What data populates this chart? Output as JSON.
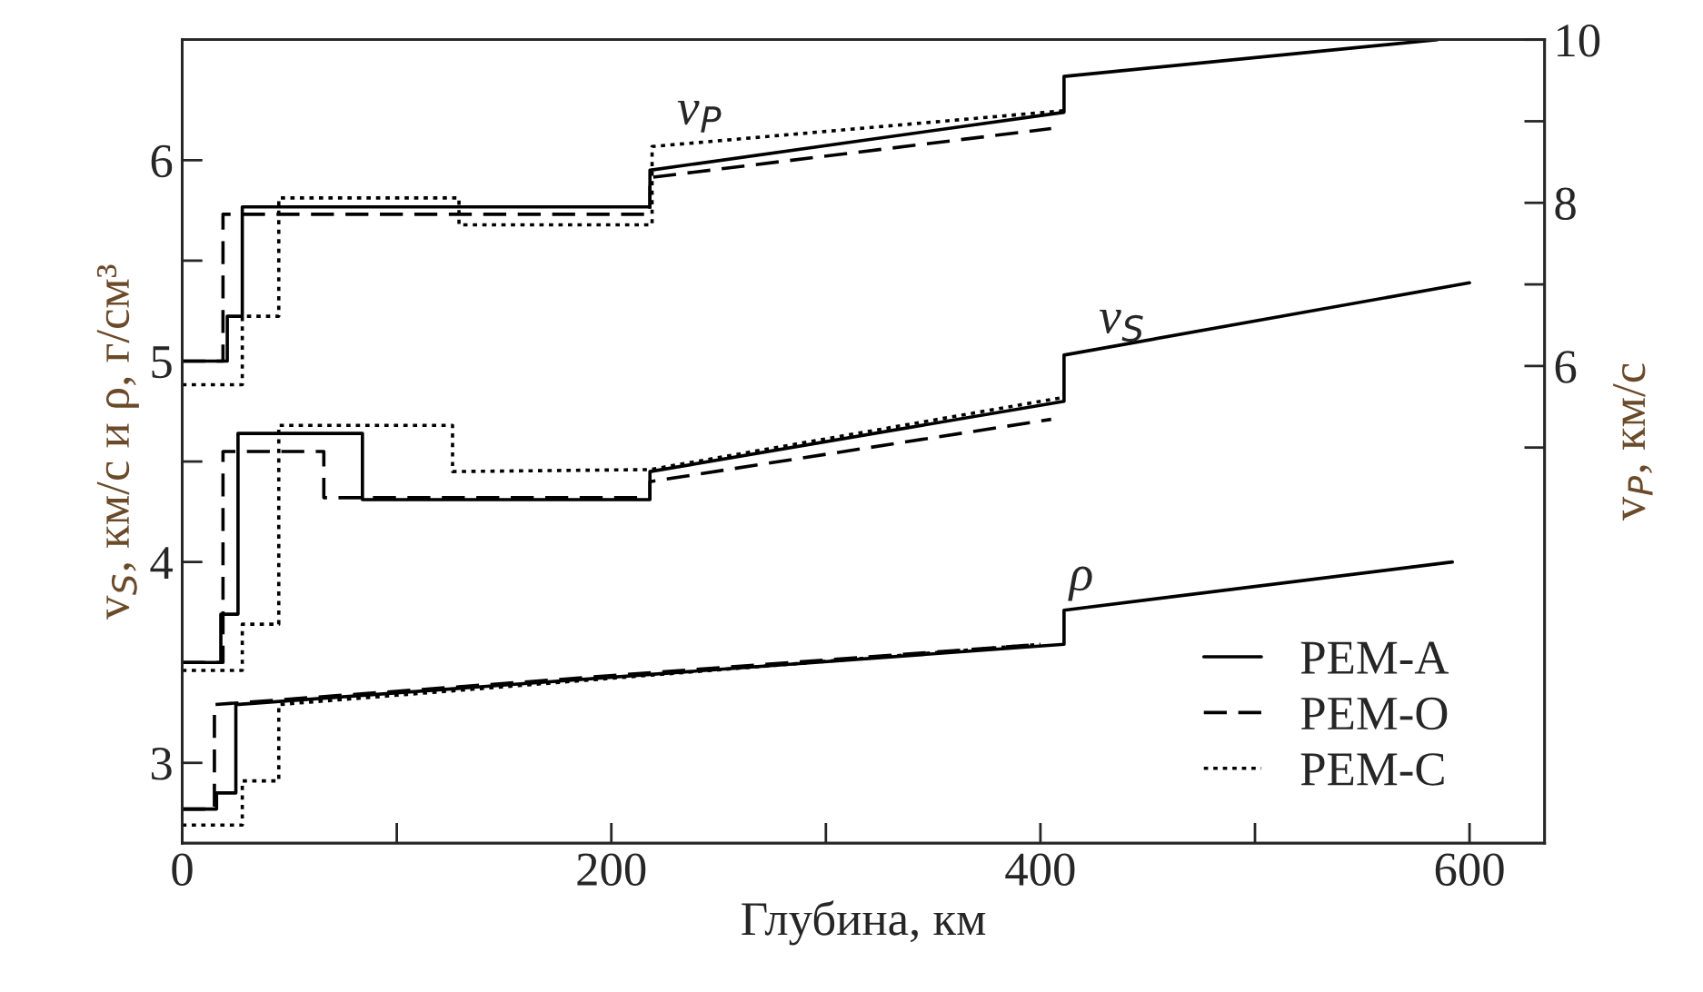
{
  "chart_data": {
    "type": "line",
    "xlabel": "Глубина, км",
    "ylabel": "v$_{S}$, км/с и ρ, г/см³",
    "y2label": "v$_{P}$, км/с",
    "xlim": [
      0,
      635
    ],
    "xticks": [
      0,
      {
        "value": 100,
        "label": null
      },
      200,
      {
        "value": 300,
        "label": null
      },
      400,
      {
        "value": 500,
        "label": null
      },
      600
    ],
    "ylim": [
      2.6,
      6.6
    ],
    "yticks": [
      3,
      {
        "value": 3.5,
        "label": null
      },
      4,
      {
        "value": 4.5,
        "label": null
      },
      5,
      {
        "value": 5.5,
        "label": null
      },
      6
    ],
    "y2lim": [
      0.15,
      10
    ],
    "y2ticks": [
      {
        "value": 5,
        "label": null
      },
      6,
      {
        "value": 7,
        "label": null
      },
      8,
      {
        "value": 9,
        "label": null
      },
      10
    ],
    "grid": false,
    "legend": "bottom right",
    "marker": "none",
    "series": [
      {
        "axis": "y2",
        "color": "#000000",
        "line_style": "solid",
        "x": [
          0,
          21,
          21,
          28,
          28,
          218,
          218,
          411,
          411,
          585
        ],
        "values": [
          6.06,
          6.06,
          6.61,
          6.61,
          7.95,
          7.95,
          8.4,
          9.11,
          9.55,
          10
        ]
      },
      {
        "axis": "y2",
        "color": "#000000",
        "line_style": "dashed",
        "x": [
          0,
          19,
          19,
          218,
          218,
          405
        ],
        "values": [
          6.06,
          6.06,
          7.86,
          7.86,
          8.31,
          8.91
        ]
      },
      {
        "axis": "y2",
        "color": "#000000",
        "line_style": "dotted",
        "x": [
          0,
          28,
          28,
          45,
          45,
          129,
          129,
          219,
          219,
          411
        ],
        "values": [
          5.77,
          5.77,
          6.61,
          6.61,
          8.06,
          8.06,
          7.73,
          7.73,
          8.69,
          9.13
        ]
      },
      {
        "name": "PEM-A",
        "color": "#000000",
        "line_style": "solid",
        "x": [
          0,
          18,
          18,
          26,
          26,
          84,
          84,
          218,
          218,
          411,
          411,
          600
        ],
        "values": [
          3.5,
          3.5,
          3.74,
          3.74,
          4.64,
          4.64,
          4.31,
          4.31,
          4.45,
          4.8,
          5.03,
          5.39
        ]
      },
      {
        "name": "PEM-O",
        "color": "#000000",
        "line_style": "dashed",
        "x": [
          0,
          19,
          19,
          66,
          66,
          218,
          218,
          405
        ],
        "values": [
          3.5,
          3.5,
          4.55,
          4.55,
          4.32,
          4.32,
          4.4,
          4.71
        ]
      },
      {
        "name": "PEM-C",
        "color": "#000000",
        "line_style": "dotted",
        "x": [
          0,
          28,
          28,
          45,
          45,
          126,
          126,
          218,
          411
        ],
        "values": [
          3.46,
          3.46,
          3.69,
          3.69,
          4.68,
          4.68,
          4.45,
          4.46,
          4.82
        ]
      },
      {
        "color": "#000000",
        "line_style": "solid",
        "x": [
          0,
          16,
          16,
          25,
          25,
          411,
          411,
          592
        ],
        "values": [
          2.77,
          2.77,
          2.85,
          2.85,
          3.29,
          3.59,
          3.76,
          4.0
        ]
      },
      {
        "color": "#000000",
        "line_style": "dashed",
        "x": [
          0,
          15,
          15,
          400
        ],
        "values": [
          2.77,
          2.77,
          3.29,
          3.59
        ]
      },
      {
        "color": "#000000",
        "line_style": "dotted",
        "x": [
          0,
          28,
          28,
          45,
          45,
          400
        ],
        "values": [
          2.69,
          2.69,
          2.91,
          2.91,
          3.29,
          3.59
        ]
      }
    ],
    "annotations": [
      "v$_{P}$",
      "v$_{S}$",
      "ρ"
    ]
  }
}
